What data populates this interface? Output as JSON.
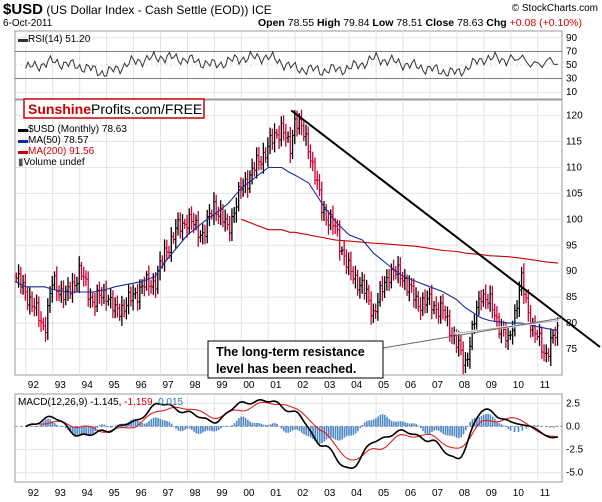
{
  "header": {
    "symbol": "$USD",
    "name": "(US Dollar Index - Cash Settle (EOD)) ICE",
    "copyright": "© StockCharts.com",
    "date": "6-Oct-2011",
    "open_label": "Open",
    "open": "78.55",
    "high_label": "High",
    "high": "79.84",
    "low_label": "Low",
    "low": "78.51",
    "close_label": "Close",
    "close": "78.63",
    "chg_label": "Chg",
    "chg": "+0.08 (+0.10%)"
  },
  "watermark": {
    "part1": "Sunshine",
    "part2": "Profits.com/FREE"
  },
  "rsi_panel": {
    "label": "RSI(14) 51.20",
    "ticks": [
      90,
      70,
      50,
      30,
      10
    ],
    "range": [
      0,
      100
    ]
  },
  "price_panel": {
    "legend": [
      {
        "text": "$USD (Monthly) 78.63",
        "color": "#000000"
      },
      {
        "text": "MA(50) 78.57",
        "color": "#1a2a9a"
      },
      {
        "text": "MA(200) 91.56",
        "color": "#cc0000"
      },
      {
        "text": "Volume undef",
        "color": "#555555"
      }
    ],
    "annotation_line1": "The long-term resistance",
    "annotation_line2": "level has been reached."
  },
  "macd_panel": {
    "label_prefix": "MACD(12,26,9)",
    "macd_value": "-1.145",
    "signal_value": "-1.159",
    "hist_value": "0.015",
    "ticks": [
      "2.5",
      "0.0",
      "-2.5",
      "-5.0"
    ]
  },
  "colors": {
    "price_up": "#000000",
    "price_down": "#cc0033",
    "ma50": "#1a2a9a",
    "ma200": "#cc0000",
    "hist": "#4f86c6",
    "grid": "#e3e3e3"
  },
  "chart_data": [
    {
      "type": "line",
      "title": "RSI(14)",
      "x": [
        1992,
        1993,
        1994,
        1995,
        1996,
        1997,
        1998,
        1999,
        2000,
        2001,
        2002,
        2003,
        2004,
        2005,
        2006,
        2007,
        2008,
        2009,
        2010,
        2011.75
      ],
      "series": [
        {
          "name": "RSI(14)",
          "values": [
            45,
            55,
            48,
            38,
            55,
            62,
            58,
            50,
            60,
            62,
            45,
            42,
            45,
            60,
            52,
            44,
            38,
            60,
            58,
            51.2
          ]
        }
      ],
      "ylim": [
        0,
        100
      ]
    },
    {
      "type": "line",
      "title": "$USD (Monthly)",
      "x": [
        1991.6,
        1992.0,
        1992.7,
        1993.0,
        1993.5,
        1994.0,
        1994.5,
        1995.0,
        1995.3,
        1995.8,
        1996.3,
        1996.8,
        1997.2,
        1997.6,
        1998.0,
        1998.6,
        1999.0,
        1999.5,
        2000.0,
        2000.5,
        2001.0,
        2001.5,
        2001.8,
        2002.0,
        2002.5,
        2003.0,
        2003.5,
        2004.0,
        2004.5,
        2004.9,
        2005.5,
        2006.0,
        2006.5,
        2007.0,
        2007.5,
        2008.0,
        2008.3,
        2008.9,
        2009.2,
        2009.9,
        2010.4,
        2010.8,
        2011.3,
        2011.75
      ],
      "series": [
        {
          "name": "$USD",
          "values": [
            89,
            86,
            79,
            88,
            85,
            90,
            84,
            86,
            82,
            84,
            87,
            88,
            94,
            98,
            100,
            97,
            103,
            98,
            106,
            110,
            114,
            118,
            113,
            120,
            114,
            102,
            98,
            90,
            87,
            82,
            90,
            89,
            84,
            84,
            82,
            76,
            72,
            86,
            84,
            76,
            88,
            79,
            74,
            78.63
          ]
        },
        {
          "name": "MA(50)",
          "values": [
            88,
            87,
            87,
            86.5,
            86,
            86,
            86,
            86.5,
            87,
            87.5,
            88,
            89,
            92,
            94.5,
            97,
            99.5,
            101,
            103,
            106,
            108,
            110,
            110,
            109,
            108.5,
            107,
            103,
            99.5,
            97,
            96,
            93.5,
            91,
            89,
            88,
            87,
            86,
            84.5,
            83,
            81,
            80.5,
            80,
            80,
            79.5,
            79,
            78.57
          ]
        },
        {
          "name": "MA(200)",
          "values": [
            null,
            null,
            null,
            null,
            null,
            null,
            null,
            null,
            null,
            null,
            null,
            null,
            null,
            null,
            null,
            null,
            null,
            null,
            100,
            99,
            98,
            98,
            97.5,
            97.5,
            97,
            96.5,
            96,
            95.8,
            95.6,
            95.4,
            95.2,
            95,
            94.8,
            94.4,
            94,
            93.8,
            93.5,
            93.2,
            93,
            92.8,
            92.5,
            92.2,
            91.8,
            91.56
          ]
        }
      ],
      "ylim": [
        70,
        123
      ]
    },
    {
      "type": "line",
      "title": "MACD(12,26,9)",
      "x": [
        1992,
        1993,
        1994,
        1995,
        1996,
        1997,
        1998,
        1999,
        2000,
        2001,
        2002,
        2003,
        2004,
        2005,
        2006,
        2007,
        2008,
        2009,
        2010,
        2011.75
      ],
      "series": [
        {
          "name": "MACD",
          "values": [
            0,
            1,
            -1,
            -0.5,
            0.5,
            2.5,
            1.5,
            0.5,
            2.5,
            2.8,
            1.5,
            -2,
            -4.6,
            -1.5,
            -0.5,
            -1.5,
            -3.5,
            1.8,
            0.5,
            -1.145
          ]
        },
        {
          "name": "Signal",
          "values": [
            0,
            0.5,
            0,
            -0.5,
            0,
            1.8,
            2,
            1,
            1.8,
            2.6,
            2,
            -0.5,
            -3.6,
            -2.5,
            -1,
            -1,
            -2.5,
            0.5,
            0.8,
            -1.159
          ]
        }
      ],
      "ylim": [
        -6,
        3.5
      ]
    }
  ]
}
